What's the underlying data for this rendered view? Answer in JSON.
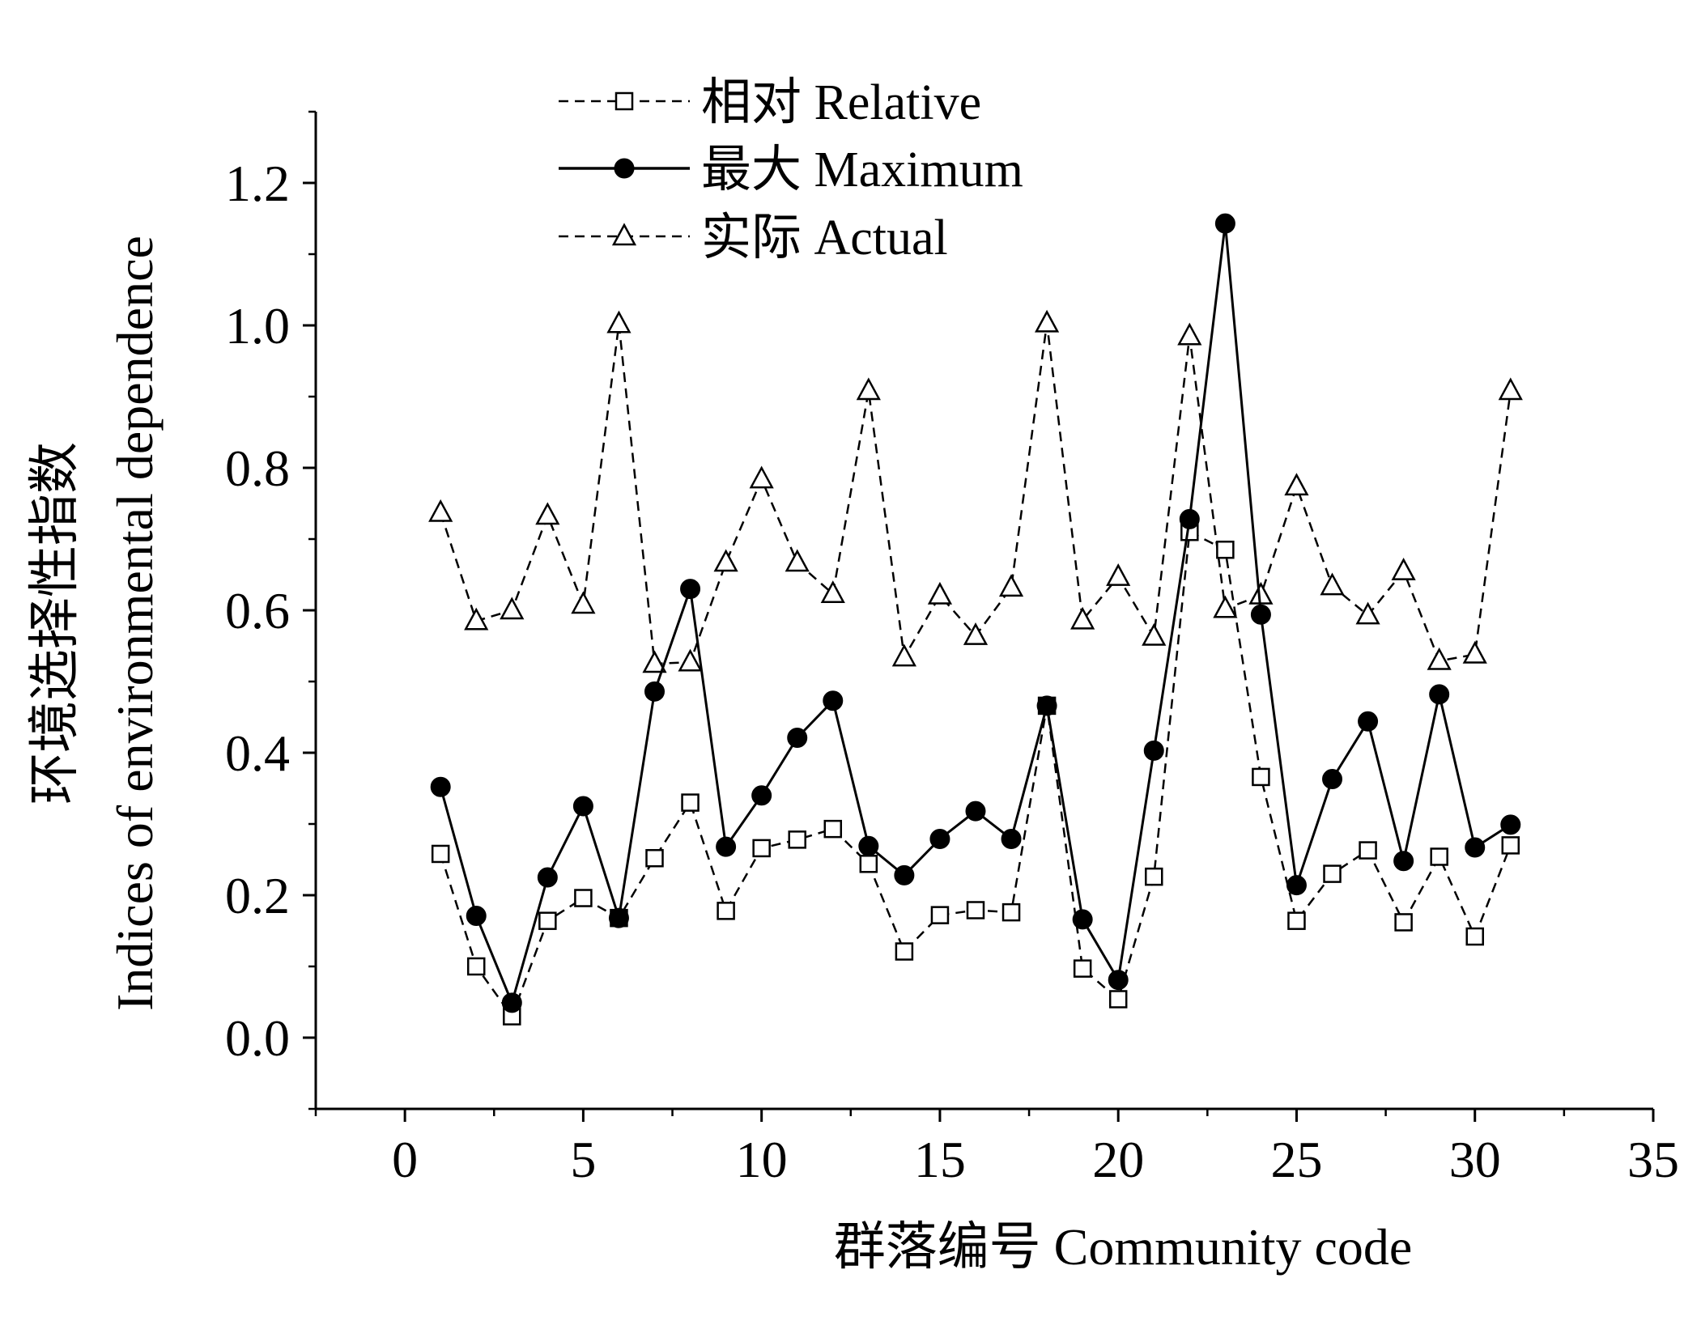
{
  "chart_data": {
    "type": "line",
    "xlabel": "群落编号 Community code",
    "ylabel_cn": "环境选择性指数",
    "ylabel_en": "Indices of environmental dependence",
    "xlim": [
      -2.5,
      35
    ],
    "ylim": [
      -0.1,
      1.3
    ],
    "xticks": [
      0,
      5,
      10,
      15,
      20,
      25,
      30,
      35
    ],
    "xtick_labels": [
      "0",
      "5",
      "10",
      "15",
      "20",
      "25",
      "30",
      "35"
    ],
    "yticks": [
      0.0,
      0.2,
      0.4,
      0.6,
      0.8,
      1.0,
      1.2
    ],
    "ytick_labels": [
      "0.0",
      "0.2",
      "0.4",
      "0.6",
      "0.8",
      "1.0",
      "1.2"
    ],
    "grid": false,
    "legend_position": "top-left",
    "x": [
      1,
      2,
      3,
      4,
      5,
      6,
      7,
      8,
      9,
      10,
      11,
      12,
      13,
      14,
      15,
      16,
      17,
      18,
      19,
      20,
      21,
      22,
      23,
      24,
      25,
      26,
      27,
      28,
      29,
      30,
      31
    ],
    "series": [
      {
        "name": "相对 Relative",
        "marker": "square-open",
        "line": "dashed",
        "values": [
          0.258,
          0.1,
          0.03,
          0.164,
          0.196,
          0.168,
          0.252,
          0.33,
          0.178,
          0.266,
          0.278,
          0.293,
          0.244,
          0.121,
          0.172,
          0.179,
          0.176,
          0.466,
          0.097,
          0.054,
          0.226,
          0.71,
          0.685,
          0.366,
          0.164,
          0.23,
          0.263,
          0.162,
          0.254,
          0.142,
          0.27
        ]
      },
      {
        "name": "最大 Maximum",
        "marker": "circle-filled",
        "line": "solid",
        "values": [
          0.352,
          0.171,
          0.049,
          0.225,
          0.325,
          0.168,
          0.486,
          0.63,
          0.268,
          0.34,
          0.421,
          0.473,
          0.269,
          0.228,
          0.279,
          0.318,
          0.279,
          0.466,
          0.166,
          0.081,
          0.403,
          0.728,
          1.143,
          0.594,
          0.214,
          0.363,
          0.444,
          0.248,
          0.482,
          0.267,
          0.299
        ]
      },
      {
        "name": "实际 Actual",
        "marker": "triangle-open",
        "line": "dashed",
        "values": [
          0.737,
          0.585,
          0.6,
          0.733,
          0.608,
          1.002,
          0.525,
          0.527,
          0.667,
          0.784,
          0.667,
          0.623,
          0.908,
          0.534,
          0.621,
          0.564,
          0.632,
          1.003,
          0.586,
          0.647,
          0.563,
          0.985,
          0.602,
          0.621,
          0.774,
          0.634,
          0.593,
          0.655,
          0.529,
          0.538,
          0.908
        ]
      }
    ]
  }
}
